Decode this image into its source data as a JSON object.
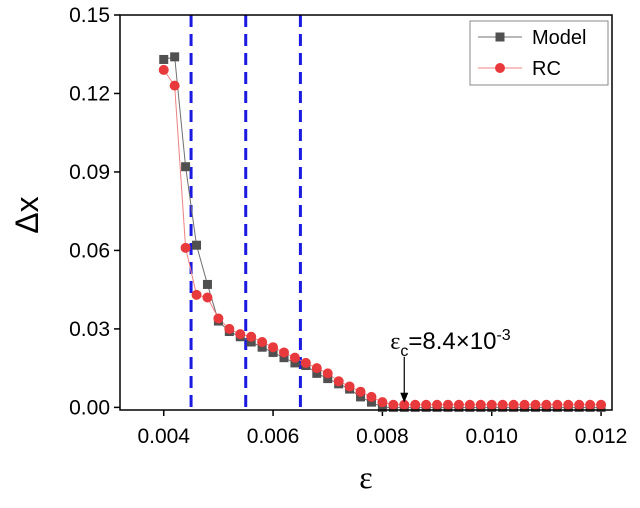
{
  "chart_data": {
    "type": "line",
    "xlabel": "ε",
    "ylabel": "Δx",
    "x": [
      0.004,
      0.0042,
      0.0044,
      0.0046,
      0.0048,
      0.005,
      0.0052,
      0.0054,
      0.0056,
      0.0058,
      0.006,
      0.0062,
      0.0064,
      0.0066,
      0.0068,
      0.007,
      0.0072,
      0.0074,
      0.0076,
      0.0078,
      0.008,
      0.0082,
      0.0084,
      0.0086,
      0.0088,
      0.009,
      0.0092,
      0.0094,
      0.0096,
      0.0098,
      0.01,
      0.0102,
      0.0104,
      0.0106,
      0.0108,
      0.011,
      0.0112,
      0.0114,
      0.0116,
      0.0118,
      0.012
    ],
    "series": [
      {
        "name": "Model",
        "color": "#505050",
        "line_color": "#707070",
        "marker": "square",
        "values": [
          0.133,
          0.134,
          0.092,
          0.062,
          0.047,
          0.033,
          0.029,
          0.027,
          0.025,
          0.023,
          0.021,
          0.019,
          0.017,
          0.016,
          0.013,
          0.011,
          0.009,
          0.007,
          0.004,
          0.002,
          0,
          0,
          0,
          0,
          0,
          0,
          0,
          0,
          0,
          0,
          0,
          0,
          0,
          0,
          0,
          0,
          0,
          0,
          0,
          0,
          0
        ]
      },
      {
        "name": "RC",
        "color": "#e8393c",
        "line_color": "#f08080",
        "marker": "circle",
        "values": [
          0.129,
          0.123,
          0.061,
          0.043,
          0.042,
          0.034,
          0.03,
          0.028,
          0.027,
          0.025,
          0.023,
          0.021,
          0.019,
          0.017,
          0.015,
          0.013,
          0.01,
          0.008,
          0.006,
          0.004,
          0.002,
          0.001,
          0.001,
          0.001,
          0.001,
          0.001,
          0.001,
          0.001,
          0.001,
          0.001,
          0.001,
          0.001,
          0.001,
          0.001,
          0.001,
          0.001,
          0.001,
          0.001,
          0.001,
          0.001,
          0.001
        ]
      }
    ],
    "xlim": [
      0.0032,
      0.0122
    ],
    "xticks": [
      0.004,
      0.006,
      0.008,
      {
        "value": 0.01,
        "label": "0.010"
      },
      0.012
    ],
    "ylim": [
      -0.001,
      0.15
    ],
    "yticks": [
      {
        "value": 0,
        "label": "0.00"
      },
      {
        "value": 0.03,
        "label": "0.03"
      },
      {
        "value": 0.06,
        "label": "0.06"
      },
      {
        "value": 0.09,
        "label": "0.09"
      },
      {
        "value": 0.12,
        "label": "0.12"
      },
      {
        "value": 0.15,
        "label": "0.15"
      }
    ],
    "vlines": [
      0.0045,
      0.0055,
      0.0065
    ],
    "vline_color": "#1a1ae0",
    "annotation": {
      "parts": [
        "ε",
        "c",
        "=8.4×10",
        "-3"
      ],
      "x": 0.0084,
      "y": 0.001
    },
    "legend": "upper right"
  }
}
